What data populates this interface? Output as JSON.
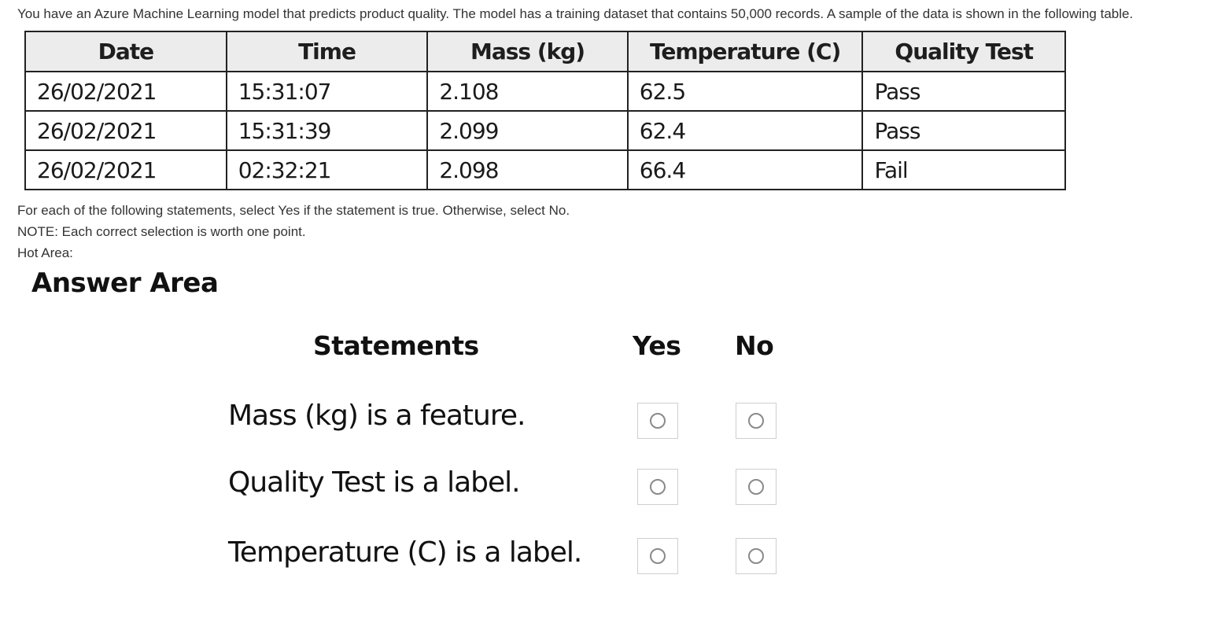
{
  "question": {
    "intro": "You have an Azure Machine Learning model that predicts product quality. The model has a training dataset that contains 50,000 records. A sample of the data is shown in the following table.",
    "instruction": "For each of the following statements, select Yes if the statement is true. Otherwise, select No.",
    "note": "NOTE: Each correct selection is worth one point.",
    "hot_area": "Hot Area:"
  },
  "table": {
    "headers": [
      "Date",
      "Time",
      "Mass (kg)",
      "Temperature (C)",
      "Quality Test"
    ],
    "rows": [
      [
        "26/02/2021",
        "15:31:07",
        "2.108",
        "62.5",
        "Pass"
      ],
      [
        "26/02/2021",
        "15:31:39",
        "2.099",
        "62.4",
        "Pass"
      ],
      [
        "26/02/2021",
        "02:32:21",
        "2.098",
        "66.4",
        "Fail"
      ]
    ]
  },
  "answer_area": {
    "title": "Answer Area",
    "statements_header": "Statements",
    "yes_header": "Yes",
    "no_header": "No",
    "statements": [
      "Mass (kg) is a feature.",
      "Quality Test is a label.",
      "Temperature (C) is a label."
    ]
  }
}
